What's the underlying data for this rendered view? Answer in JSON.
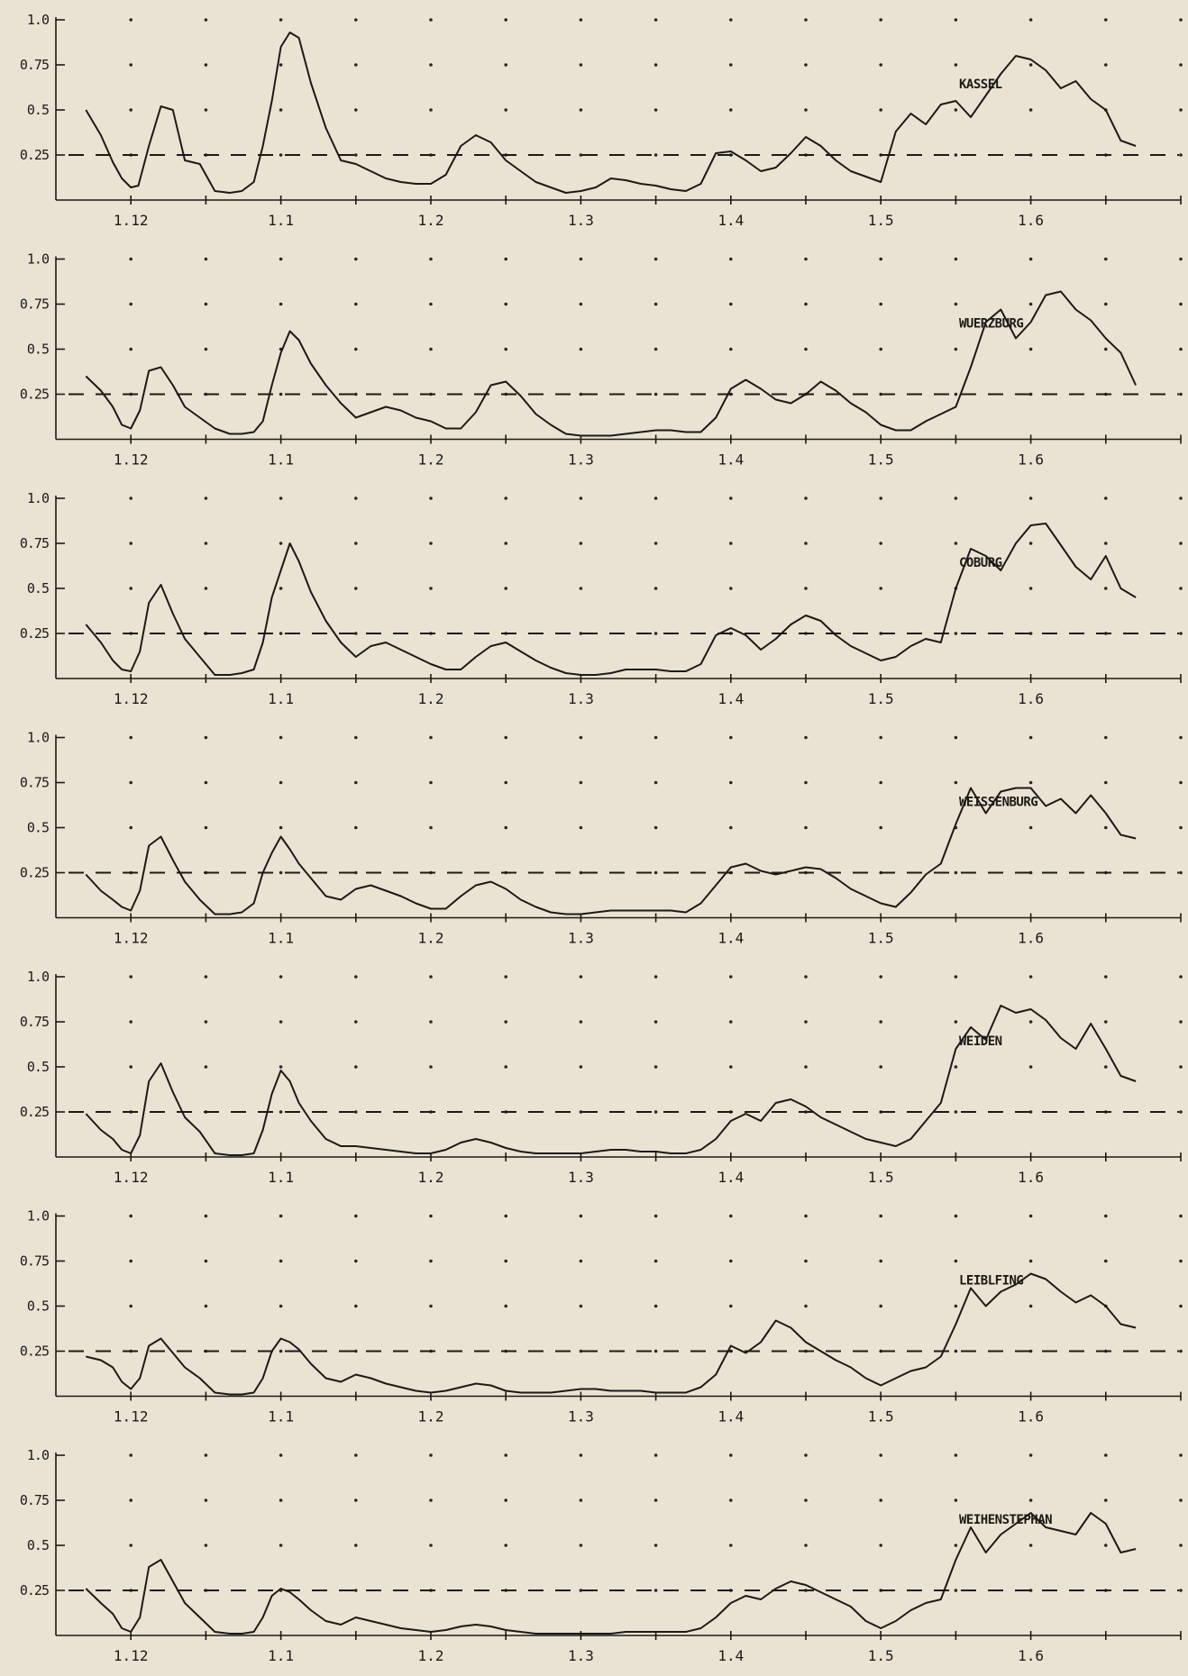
{
  "chart_data": {
    "type": "line",
    "colors": {
      "background": "#e9e3d3",
      "ink": "#1c1a17"
    },
    "grid": "dotted",
    "xlim": [
      0,
      7.5
    ],
    "ylim": [
      0,
      1.0
    ],
    "reference_line": 0.25,
    "y_ticks": [
      {
        "value": 0.25,
        "label": "0.25"
      },
      {
        "value": 0.5,
        "label": "0.5"
      },
      {
        "value": 0.75,
        "label": "0.75"
      },
      {
        "value": 1.0,
        "label": "1.0"
      }
    ],
    "x_ticks": [
      {
        "value": 0.5,
        "label": "1.12"
      },
      {
        "value": 1.5,
        "label": "1.1"
      },
      {
        "value": 2.5,
        "label": "1.2"
      },
      {
        "value": 3.5,
        "label": "1.3"
      },
      {
        "value": 4.5,
        "label": "1.4"
      },
      {
        "value": 5.5,
        "label": "1.5"
      },
      {
        "value": 6.5,
        "label": "1.6"
      }
    ],
    "panels": [
      {
        "name": "KASSEL",
        "x": [
          0.2,
          0.3,
          0.38,
          0.44,
          0.5,
          0.55,
          0.62,
          0.7,
          0.78,
          0.86,
          0.96,
          1.06,
          1.16,
          1.24,
          1.32,
          1.38,
          1.44,
          1.5,
          1.56,
          1.62,
          1.7,
          1.8,
          1.9,
          2.0,
          2.1,
          2.2,
          2.3,
          2.4,
          2.5,
          2.6,
          2.7,
          2.8,
          2.9,
          3.0,
          3.1,
          3.2,
          3.3,
          3.4,
          3.5,
          3.6,
          3.7,
          3.8,
          3.9,
          4.0,
          4.1,
          4.2,
          4.3,
          4.4,
          4.5,
          4.6,
          4.7,
          4.8,
          4.9,
          5.0,
          5.1,
          5.2,
          5.3,
          5.4,
          5.5,
          5.6,
          5.7,
          5.8,
          5.9,
          6.0,
          6.1,
          6.2,
          6.3,
          6.4,
          6.5,
          6.6,
          6.7,
          6.8,
          6.9,
          7.0,
          7.1,
          7.2
        ],
        "values": [
          0.5,
          0.36,
          0.21,
          0.12,
          0.07,
          0.08,
          0.3,
          0.52,
          0.5,
          0.22,
          0.2,
          0.05,
          0.04,
          0.05,
          0.1,
          0.3,
          0.55,
          0.85,
          0.93,
          0.9,
          0.65,
          0.4,
          0.22,
          0.2,
          0.16,
          0.12,
          0.1,
          0.09,
          0.09,
          0.14,
          0.3,
          0.36,
          0.32,
          0.22,
          0.16,
          0.1,
          0.07,
          0.04,
          0.05,
          0.07,
          0.12,
          0.11,
          0.09,
          0.08,
          0.06,
          0.05,
          0.09,
          0.26,
          0.27,
          0.22,
          0.16,
          0.18,
          0.26,
          0.35,
          0.3,
          0.22,
          0.16,
          0.13,
          0.1,
          0.38,
          0.48,
          0.42,
          0.53,
          0.55,
          0.46,
          0.58,
          0.7,
          0.8,
          0.78,
          0.72,
          0.62,
          0.66,
          0.56,
          0.5,
          0.33,
          0.3
        ]
      },
      {
        "name": "WUERZBURG",
        "x": [
          0.2,
          0.3,
          0.38,
          0.44,
          0.5,
          0.56,
          0.62,
          0.7,
          0.78,
          0.86,
          0.96,
          1.06,
          1.16,
          1.24,
          1.32,
          1.38,
          1.44,
          1.5,
          1.56,
          1.62,
          1.7,
          1.8,
          1.9,
          2.0,
          2.1,
          2.2,
          2.3,
          2.4,
          2.5,
          2.6,
          2.7,
          2.8,
          2.9,
          3.0,
          3.1,
          3.2,
          3.3,
          3.4,
          3.5,
          3.6,
          3.7,
          3.8,
          3.9,
          4.0,
          4.1,
          4.2,
          4.3,
          4.4,
          4.5,
          4.6,
          4.7,
          4.8,
          4.9,
          5.0,
          5.1,
          5.2,
          5.3,
          5.4,
          5.5,
          5.6,
          5.7,
          5.8,
          5.9,
          6.0,
          6.1,
          6.2,
          6.3,
          6.4,
          6.5,
          6.6,
          6.7,
          6.8,
          6.9,
          7.0,
          7.1,
          7.2
        ],
        "values": [
          0.35,
          0.27,
          0.18,
          0.08,
          0.06,
          0.16,
          0.38,
          0.4,
          0.3,
          0.18,
          0.12,
          0.06,
          0.03,
          0.03,
          0.04,
          0.1,
          0.3,
          0.48,
          0.6,
          0.55,
          0.42,
          0.3,
          0.2,
          0.12,
          0.15,
          0.18,
          0.16,
          0.12,
          0.1,
          0.06,
          0.06,
          0.15,
          0.3,
          0.32,
          0.24,
          0.14,
          0.08,
          0.03,
          0.02,
          0.02,
          0.02,
          0.03,
          0.04,
          0.05,
          0.05,
          0.04,
          0.04,
          0.12,
          0.28,
          0.33,
          0.28,
          0.22,
          0.2,
          0.25,
          0.32,
          0.27,
          0.2,
          0.15,
          0.08,
          0.05,
          0.05,
          0.1,
          0.14,
          0.18,
          0.4,
          0.65,
          0.72,
          0.56,
          0.65,
          0.8,
          0.82,
          0.72,
          0.66,
          0.56,
          0.48,
          0.3
        ]
      },
      {
        "name": "COBURG",
        "x": [
          0.2,
          0.3,
          0.38,
          0.44,
          0.5,
          0.56,
          0.62,
          0.7,
          0.78,
          0.86,
          0.96,
          1.06,
          1.16,
          1.24,
          1.32,
          1.38,
          1.44,
          1.5,
          1.56,
          1.62,
          1.7,
          1.8,
          1.9,
          2.0,
          2.1,
          2.2,
          2.3,
          2.4,
          2.5,
          2.6,
          2.7,
          2.8,
          2.9,
          3.0,
          3.1,
          3.2,
          3.3,
          3.4,
          3.5,
          3.6,
          3.7,
          3.8,
          3.9,
          4.0,
          4.1,
          4.2,
          4.3,
          4.4,
          4.5,
          4.6,
          4.7,
          4.8,
          4.9,
          5.0,
          5.1,
          5.2,
          5.3,
          5.4,
          5.5,
          5.6,
          5.7,
          5.8,
          5.9,
          6.0,
          6.1,
          6.2,
          6.3,
          6.4,
          6.5,
          6.6,
          6.7,
          6.8,
          6.9,
          7.0,
          7.1,
          7.2
        ],
        "values": [
          0.3,
          0.2,
          0.1,
          0.05,
          0.04,
          0.15,
          0.42,
          0.52,
          0.36,
          0.22,
          0.12,
          0.02,
          0.02,
          0.03,
          0.05,
          0.2,
          0.45,
          0.6,
          0.75,
          0.65,
          0.48,
          0.32,
          0.2,
          0.12,
          0.18,
          0.2,
          0.16,
          0.12,
          0.08,
          0.05,
          0.05,
          0.12,
          0.18,
          0.2,
          0.15,
          0.1,
          0.06,
          0.03,
          0.02,
          0.02,
          0.03,
          0.05,
          0.05,
          0.05,
          0.04,
          0.04,
          0.08,
          0.24,
          0.28,
          0.24,
          0.16,
          0.22,
          0.3,
          0.35,
          0.32,
          0.24,
          0.18,
          0.14,
          0.1,
          0.12,
          0.18,
          0.22,
          0.2,
          0.5,
          0.72,
          0.68,
          0.6,
          0.75,
          0.85,
          0.86,
          0.74,
          0.62,
          0.55,
          0.68,
          0.5,
          0.45
        ]
      },
      {
        "name": "WEISSENBURG",
        "x": [
          0.2,
          0.3,
          0.38,
          0.44,
          0.5,
          0.56,
          0.62,
          0.7,
          0.78,
          0.86,
          0.96,
          1.06,
          1.16,
          1.24,
          1.32,
          1.38,
          1.44,
          1.5,
          1.56,
          1.62,
          1.7,
          1.8,
          1.9,
          2.0,
          2.1,
          2.2,
          2.3,
          2.4,
          2.5,
          2.6,
          2.7,
          2.8,
          2.9,
          3.0,
          3.1,
          3.2,
          3.3,
          3.4,
          3.5,
          3.6,
          3.7,
          3.8,
          3.9,
          4.0,
          4.1,
          4.2,
          4.3,
          4.4,
          4.5,
          4.6,
          4.7,
          4.8,
          4.9,
          5.0,
          5.1,
          5.2,
          5.3,
          5.4,
          5.5,
          5.6,
          5.7,
          5.8,
          5.9,
          6.0,
          6.1,
          6.2,
          6.3,
          6.4,
          6.5,
          6.6,
          6.7,
          6.8,
          6.9,
          7.0,
          7.1,
          7.2
        ],
        "values": [
          0.24,
          0.15,
          0.1,
          0.06,
          0.04,
          0.15,
          0.4,
          0.45,
          0.32,
          0.2,
          0.1,
          0.02,
          0.02,
          0.03,
          0.08,
          0.25,
          0.36,
          0.45,
          0.38,
          0.3,
          0.22,
          0.12,
          0.1,
          0.16,
          0.18,
          0.15,
          0.12,
          0.08,
          0.05,
          0.05,
          0.12,
          0.18,
          0.2,
          0.16,
          0.1,
          0.06,
          0.03,
          0.02,
          0.02,
          0.03,
          0.04,
          0.04,
          0.04,
          0.04,
          0.04,
          0.03,
          0.08,
          0.18,
          0.28,
          0.3,
          0.26,
          0.24,
          0.26,
          0.28,
          0.27,
          0.22,
          0.16,
          0.12,
          0.08,
          0.06,
          0.14,
          0.24,
          0.3,
          0.52,
          0.72,
          0.58,
          0.7,
          0.72,
          0.72,
          0.62,
          0.66,
          0.58,
          0.68,
          0.58,
          0.46,
          0.44
        ]
      },
      {
        "name": "WEIDEN",
        "x": [
          0.2,
          0.3,
          0.38,
          0.44,
          0.5,
          0.56,
          0.62,
          0.7,
          0.78,
          0.86,
          0.96,
          1.06,
          1.16,
          1.24,
          1.32,
          1.38,
          1.44,
          1.5,
          1.56,
          1.62,
          1.7,
          1.8,
          1.9,
          2.0,
          2.1,
          2.2,
          2.3,
          2.4,
          2.5,
          2.6,
          2.7,
          2.8,
          2.9,
          3.0,
          3.1,
          3.2,
          3.3,
          3.4,
          3.5,
          3.6,
          3.7,
          3.8,
          3.9,
          4.0,
          4.1,
          4.2,
          4.3,
          4.4,
          4.5,
          4.6,
          4.7,
          4.8,
          4.9,
          5.0,
          5.1,
          5.2,
          5.3,
          5.4,
          5.5,
          5.6,
          5.7,
          5.8,
          5.9,
          6.0,
          6.1,
          6.2,
          6.3,
          6.4,
          6.5,
          6.6,
          6.7,
          6.8,
          6.9,
          7.0,
          7.1,
          7.2
        ],
        "values": [
          0.24,
          0.15,
          0.1,
          0.04,
          0.02,
          0.12,
          0.42,
          0.52,
          0.36,
          0.22,
          0.14,
          0.02,
          0.01,
          0.01,
          0.02,
          0.15,
          0.35,
          0.48,
          0.42,
          0.3,
          0.2,
          0.1,
          0.06,
          0.06,
          0.05,
          0.04,
          0.03,
          0.02,
          0.02,
          0.04,
          0.08,
          0.1,
          0.08,
          0.05,
          0.03,
          0.02,
          0.02,
          0.02,
          0.02,
          0.03,
          0.04,
          0.04,
          0.03,
          0.03,
          0.02,
          0.02,
          0.04,
          0.1,
          0.2,
          0.24,
          0.2,
          0.3,
          0.32,
          0.28,
          0.22,
          0.18,
          0.14,
          0.1,
          0.08,
          0.06,
          0.1,
          0.2,
          0.3,
          0.6,
          0.72,
          0.65,
          0.84,
          0.8,
          0.82,
          0.76,
          0.66,
          0.6,
          0.74,
          0.6,
          0.45,
          0.42
        ]
      },
      {
        "name": "LEIBLFING",
        "x": [
          0.2,
          0.3,
          0.38,
          0.44,
          0.5,
          0.56,
          0.62,
          0.7,
          0.78,
          0.86,
          0.96,
          1.06,
          1.16,
          1.24,
          1.32,
          1.38,
          1.44,
          1.5,
          1.56,
          1.62,
          1.7,
          1.8,
          1.9,
          2.0,
          2.1,
          2.2,
          2.3,
          2.4,
          2.5,
          2.6,
          2.7,
          2.8,
          2.9,
          3.0,
          3.1,
          3.2,
          3.3,
          3.4,
          3.5,
          3.6,
          3.7,
          3.8,
          3.9,
          4.0,
          4.1,
          4.2,
          4.3,
          4.4,
          4.5,
          4.6,
          4.7,
          4.8,
          4.9,
          5.0,
          5.1,
          5.2,
          5.3,
          5.4,
          5.5,
          5.6,
          5.7,
          5.8,
          5.9,
          6.0,
          6.1,
          6.2,
          6.3,
          6.4,
          6.5,
          6.6,
          6.7,
          6.8,
          6.9,
          7.0,
          7.1,
          7.2
        ],
        "values": [
          0.22,
          0.2,
          0.16,
          0.08,
          0.04,
          0.1,
          0.28,
          0.32,
          0.24,
          0.16,
          0.1,
          0.02,
          0.01,
          0.01,
          0.02,
          0.1,
          0.25,
          0.32,
          0.3,
          0.26,
          0.18,
          0.1,
          0.08,
          0.12,
          0.1,
          0.07,
          0.05,
          0.03,
          0.02,
          0.03,
          0.05,
          0.07,
          0.06,
          0.03,
          0.02,
          0.02,
          0.02,
          0.03,
          0.04,
          0.04,
          0.03,
          0.03,
          0.03,
          0.02,
          0.02,
          0.02,
          0.05,
          0.12,
          0.28,
          0.24,
          0.3,
          0.42,
          0.38,
          0.3,
          0.25,
          0.2,
          0.16,
          0.1,
          0.06,
          0.1,
          0.14,
          0.16,
          0.22,
          0.4,
          0.6,
          0.5,
          0.58,
          0.62,
          0.68,
          0.65,
          0.58,
          0.52,
          0.56,
          0.5,
          0.4,
          0.38
        ]
      },
      {
        "name": "WEIHENSTEPHAN",
        "x": [
          0.2,
          0.3,
          0.38,
          0.44,
          0.5,
          0.56,
          0.62,
          0.7,
          0.78,
          0.86,
          0.96,
          1.06,
          1.16,
          1.24,
          1.32,
          1.38,
          1.44,
          1.5,
          1.56,
          1.62,
          1.7,
          1.8,
          1.9,
          2.0,
          2.1,
          2.2,
          2.3,
          2.4,
          2.5,
          2.6,
          2.7,
          2.8,
          2.9,
          3.0,
          3.1,
          3.2,
          3.3,
          3.4,
          3.5,
          3.6,
          3.7,
          3.8,
          3.9,
          4.0,
          4.1,
          4.2,
          4.3,
          4.4,
          4.5,
          4.6,
          4.7,
          4.8,
          4.9,
          5.0,
          5.1,
          5.2,
          5.3,
          5.4,
          5.5,
          5.6,
          5.7,
          5.8,
          5.9,
          6.0,
          6.1,
          6.2,
          6.3,
          6.4,
          6.5,
          6.6,
          6.7,
          6.8,
          6.9,
          7.0,
          7.1,
          7.2
        ],
        "values": [
          0.26,
          0.18,
          0.12,
          0.04,
          0.02,
          0.1,
          0.38,
          0.42,
          0.3,
          0.18,
          0.1,
          0.02,
          0.01,
          0.01,
          0.02,
          0.1,
          0.22,
          0.26,
          0.24,
          0.2,
          0.14,
          0.08,
          0.06,
          0.1,
          0.08,
          0.06,
          0.04,
          0.03,
          0.02,
          0.03,
          0.05,
          0.06,
          0.05,
          0.03,
          0.02,
          0.01,
          0.01,
          0.01,
          0.01,
          0.01,
          0.01,
          0.02,
          0.02,
          0.02,
          0.02,
          0.02,
          0.04,
          0.1,
          0.18,
          0.22,
          0.2,
          0.26,
          0.3,
          0.28,
          0.24,
          0.2,
          0.16,
          0.08,
          0.04,
          0.08,
          0.14,
          0.18,
          0.2,
          0.42,
          0.6,
          0.46,
          0.56,
          0.62,
          0.68,
          0.6,
          0.58,
          0.56,
          0.68,
          0.62,
          0.46,
          0.48
        ]
      }
    ]
  }
}
